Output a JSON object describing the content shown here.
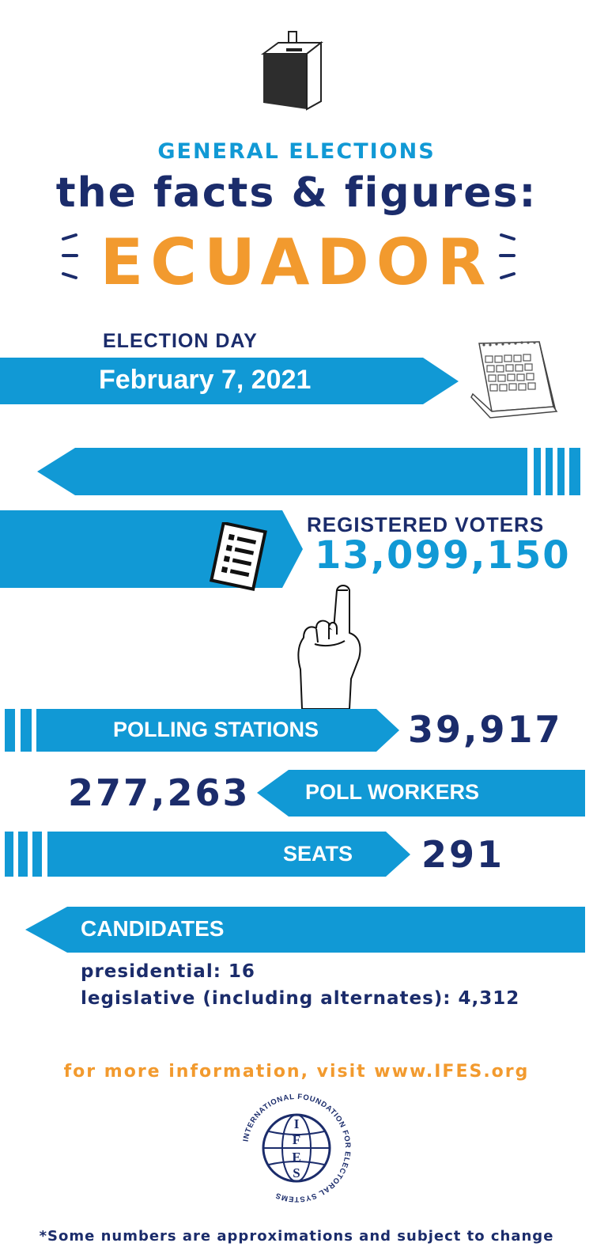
{
  "header": {
    "subtitle": "GENERAL ELECTIONS",
    "title": "the facts & figures:",
    "country": "ECUADOR"
  },
  "election_day": {
    "label": "ELECTION DAY",
    "date": "February 7, 2021"
  },
  "registered_voters": {
    "label": "REGISTERED VOTERS",
    "value": "13,099,150"
  },
  "polling_stations": {
    "label": "POLLING STATIONS",
    "value": "39,917"
  },
  "poll_workers": {
    "label": "POLL WORKERS",
    "value": "277,263"
  },
  "seats": {
    "label": "SEATS",
    "value": "291"
  },
  "candidates": {
    "label": "CANDIDATES",
    "presidential": "presidential: 16",
    "legislative": "legislative (including alternates): 4,312"
  },
  "footer": {
    "more_info": "for more information, visit www.IFES.org",
    "disclaimer": "*Some numbers are approximations and subject to change"
  },
  "logo": {
    "ring_text": "INTERNATIONAL FOUNDATION FOR ELECTORAL SYSTEMS",
    "letters": [
      "I",
      "F",
      "E",
      "S"
    ]
  },
  "colors": {
    "blue": "#1199d5",
    "navy": "#1b2c6b",
    "orange": "#f29a2e"
  },
  "icons": [
    "ballot-box-icon",
    "calendar-icon",
    "checklist-icon",
    "pointing-hand-icon"
  ]
}
